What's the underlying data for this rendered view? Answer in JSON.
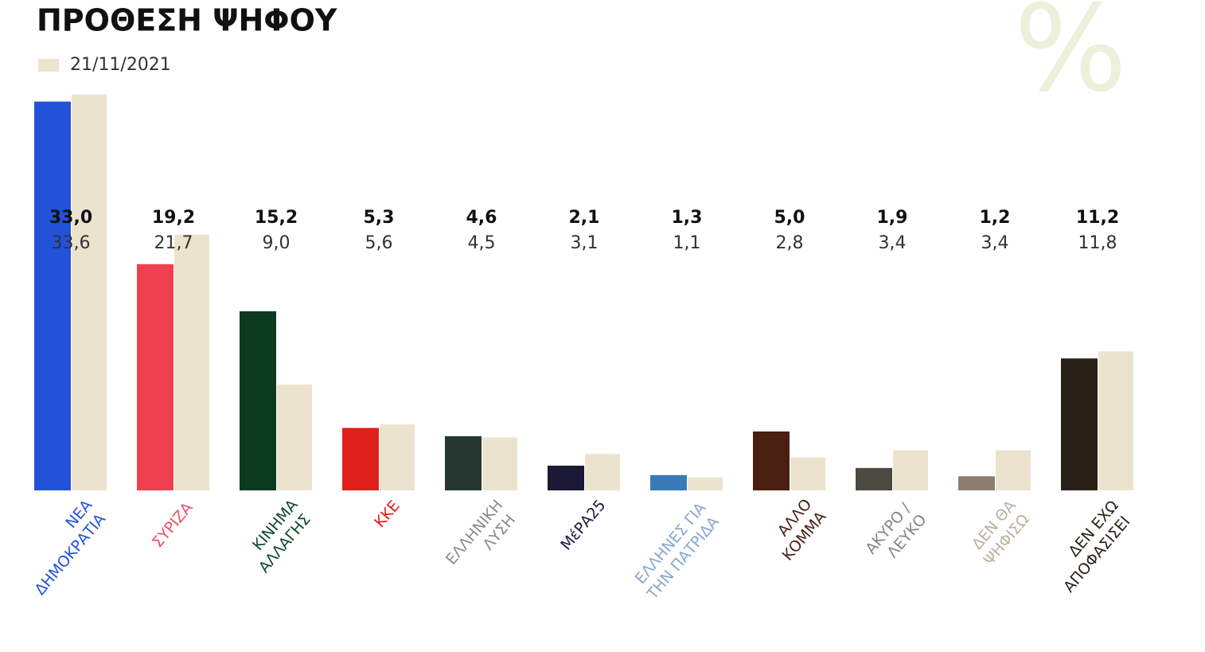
{
  "chart_data": {
    "type": "bar",
    "title": "ΠΡΟΘΕΣΗ ΨΗΦΟΥ",
    "unit": "%",
    "categories": [
      "ΝΕΑ\nΔΗΜΟΚΡΑΤΙΑ",
      "ΣΥΡΙΖΑ",
      "ΚΙΝΗΜΑ\nΑΛΛΑΓΗΣ",
      "ΚΚΕ",
      "ΕΛΛΗΝΙΚΗ\nΛΥΣΗ",
      "ΜέΡΑ25",
      "ΕΛΛΗΝΕΣ ΓΙΑ\nΤΗΝ ΠΑΤΡΙΔΑ",
      "ΑΛΛΟ\nΚΟΜΜΑ",
      "ΑΚΥΡΟ /\nΛΕΥΚΟ",
      "ΔΕΝ ΘΑ\nΨΗΦΙΣΩ",
      "ΔΕΝ ΕΧΩ\nΑΠΟΦΑΣΙΣΕΙ"
    ],
    "label_colors": [
      "#2252d8",
      "#e8506a",
      "#0f4a28",
      "#e0201a",
      "#8a8a8a",
      "#1a1a40",
      "#86a8cc",
      "#4a1f12",
      "#8a8480",
      "#bcb29c",
      "#2a2218"
    ],
    "series": [
      {
        "colors": [
          "#2252d8",
          "#f0404f",
          "#0b3a1f",
          "#e0201a",
          "#263630",
          "#1a1a35",
          "#3a7ab8",
          "#4a1f12",
          "#4d4840",
          "#8a7e6e",
          "#2a2218"
        ],
        "values": [
          33.0,
          19.2,
          15.2,
          5.3,
          4.6,
          2.1,
          1.3,
          5.0,
          1.9,
          1.2,
          11.2
        ],
        "value_labels": [
          "33,0",
          "19,2",
          "15,2",
          "5,3",
          "4,6",
          "2,1",
          "1,3",
          "5,0",
          "1,9",
          "1,2",
          "11,2"
        ]
      },
      {
        "name": "21/11/2021",
        "color": "#ece3cf",
        "values": [
          33.6,
          21.7,
          9.0,
          5.6,
          4.5,
          3.1,
          1.1,
          2.8,
          3.4,
          3.4,
          11.8
        ],
        "value_labels": [
          "33,6",
          "21,7",
          "9,0",
          "5,6",
          "4,5",
          "3,1",
          "1,1",
          "2,8",
          "3,4",
          "3,4",
          "11,8"
        ]
      }
    ]
  }
}
